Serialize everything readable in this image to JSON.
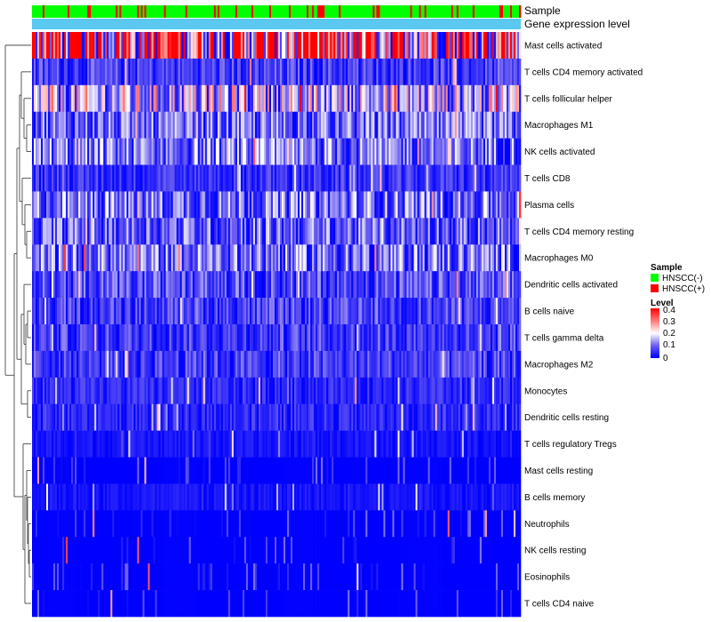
{
  "chart_data": {
    "type": "heatmap",
    "title": "",
    "annotation_rows": [
      {
        "name": "Sample"
      },
      {
        "name": "Gene expression level"
      }
    ],
    "rows": [
      "Mast cells activated",
      "T cells CD4 memory activated",
      "T cells follicular helper",
      "Macrophages M1",
      "NK cells activated",
      "T cells CD8",
      "Plasma cells",
      "T cells CD4 memory resting",
      "Macrophages M0",
      "Dendritic cells activated",
      "B cells naive",
      "T cells gamma delta",
      "Macrophages M2",
      "Monocytes",
      "Dendritic cells resting",
      "T cells regulatory  Tregs",
      "Mast cells resting",
      "B cells memory",
      "Neutrophils",
      "NK cells resting",
      "Eosinophils",
      "T cells CD4 naive"
    ],
    "row_mean_level": [
      0.3,
      0.06,
      0.15,
      0.09,
      0.1,
      0.05,
      0.1,
      0.09,
      0.1,
      0.07,
      0.06,
      0.06,
      0.06,
      0.04,
      0.04,
      0.02,
      0.01,
      0.02,
      0.01,
      0.01,
      0.005,
      0.01
    ],
    "n_samples": 274,
    "color_scale": {
      "min": 0,
      "max": 0.4,
      "low_color": "#0000ff",
      "mid_color": "#ffffff",
      "high_color": "#ff0000"
    },
    "legend": {
      "sample": {
        "title": "Sample",
        "items": [
          {
            "label": "HNSCC(-)",
            "color": "#00ff00"
          },
          {
            "label": "HNSCC(+)",
            "color": "#ff0000"
          }
        ]
      },
      "level": {
        "title": "Level",
        "ticks": [
          "0.4",
          "0.3",
          "0.2",
          "0.1",
          "0"
        ]
      },
      "gene_expression_color": "#5bc8f0"
    }
  }
}
